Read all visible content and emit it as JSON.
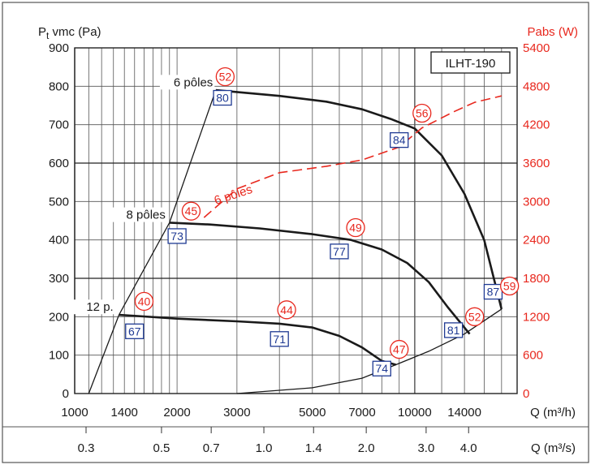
{
  "chart_data": {
    "type": "line",
    "title": "",
    "y_left_label": "Pt vmc (Pa)",
    "y_left_label_main": "P",
    "y_left_label_sub": "t",
    "y_left_label_rest": " vmc (Pa)",
    "y_right_label": "Pabs (W)",
    "x_label": "Q (m³/h)",
    "x2_label": "Q (m³/s)",
    "ylim": [
      0,
      900
    ],
    "y2lim": [
      0,
      5400
    ],
    "y_ticks": [
      "900",
      "800",
      "700",
      "600",
      "500",
      "400",
      "300",
      "200",
      "100",
      "0"
    ],
    "y2_ticks": [
      "5400",
      "4800",
      "4200",
      "3600",
      "3000",
      "2400",
      "1800",
      "1200",
      "600",
      "0"
    ],
    "x_ticks": [
      "1000",
      "1400",
      "2000",
      "3000",
      "5000",
      "7000",
      "10000",
      "14000"
    ],
    "x2_ticks": [
      "0.3",
      "0.5",
      "0.7",
      "1.0",
      "1.4",
      "2.0",
      "3.0",
      "4.0"
    ],
    "model": "ILHT-190",
    "series": [
      {
        "name": "6 pôles",
        "points": [
          [
            2600,
            790
          ],
          [
            3000,
            785
          ],
          [
            4000,
            775
          ],
          [
            5500,
            760
          ],
          [
            7000,
            740
          ],
          [
            8500,
            715
          ],
          [
            10000,
            690
          ],
          [
            12000,
            620
          ],
          [
            14000,
            520
          ],
          [
            16000,
            400
          ],
          [
            18000,
            220
          ]
        ]
      },
      {
        "name": "8 pôles",
        "points": [
          [
            1900,
            445
          ],
          [
            2500,
            440
          ],
          [
            3500,
            430
          ],
          [
            5000,
            415
          ],
          [
            6500,
            400
          ],
          [
            8000,
            375
          ],
          [
            9500,
            340
          ],
          [
            11000,
            290
          ],
          [
            12500,
            225
          ],
          [
            14500,
            155
          ]
        ]
      },
      {
        "name": "12 p.",
        "points": [
          [
            1350,
            205
          ],
          [
            2000,
            195
          ],
          [
            3000,
            188
          ],
          [
            4000,
            182
          ],
          [
            5000,
            172
          ],
          [
            6000,
            150
          ],
          [
            7000,
            120
          ],
          [
            8000,
            85
          ],
          [
            8800,
            75
          ]
        ]
      },
      {
        "name": "6 pôles (Pabs)",
        "axis": "right",
        "points": [
          [
            2400,
            2750
          ],
          [
            3000,
            3200
          ],
          [
            4000,
            3450
          ],
          [
            5500,
            3550
          ],
          [
            7000,
            3650
          ],
          [
            9000,
            3850
          ],
          [
            10500,
            4150
          ],
          [
            13000,
            4400
          ],
          [
            15000,
            4550
          ],
          [
            18000,
            4650
          ]
        ]
      }
    ],
    "system_lines": [
      {
        "points": [
          [
            1100,
            0
          ],
          [
            1350,
            205
          ],
          [
            1900,
            445
          ],
          [
            2600,
            790
          ]
        ]
      },
      {
        "points": [
          [
            3000,
            0
          ],
          [
            5000,
            15
          ],
          [
            7000,
            40
          ],
          [
            8800,
            75
          ],
          [
            11000,
            110
          ],
          [
            14000,
            155
          ],
          [
            18000,
            220
          ]
        ]
      }
    ],
    "blue_labels": [
      {
        "text": "80",
        "x": 2720,
        "y": 770
      },
      {
        "text": "73",
        "x": 2000,
        "y": 410
      },
      {
        "text": "67",
        "x": 1500,
        "y": 162
      },
      {
        "text": "84",
        "x": 9000,
        "y": 660
      },
      {
        "text": "77",
        "x": 6000,
        "y": 370
      },
      {
        "text": "71",
        "x": 4000,
        "y": 142
      },
      {
        "text": "74",
        "x": 8000,
        "y": 65
      },
      {
        "text": "81",
        "x": 13000,
        "y": 165
      },
      {
        "text": "87",
        "x": 17000,
        "y": 265
      }
    ],
    "red_labels": [
      {
        "text": "52",
        "x": 2770,
        "y": 825
      },
      {
        "text": "45",
        "x": 2200,
        "y": 475
      },
      {
        "text": "40",
        "x": 1600,
        "y": 240
      },
      {
        "text": "56",
        "x": 10500,
        "y": 730
      },
      {
        "text": "49",
        "x": 6700,
        "y": 432
      },
      {
        "text": "44",
        "x": 4200,
        "y": 218
      },
      {
        "text": "47",
        "x": 9000,
        "y": 115
      },
      {
        "text": "52",
        "x": 15000,
        "y": 200
      },
      {
        "text": "59",
        "x": 19000,
        "y": 280
      }
    ],
    "curve_text_labels": [
      {
        "text": "6 pôles",
        "x": 2550,
        "y": 800,
        "anchor": "end"
      },
      {
        "text": "8 pôles",
        "x": 1850,
        "y": 455,
        "anchor": "end"
      },
      {
        "text": "12 p.",
        "x": 1300,
        "y": 215,
        "anchor": "end"
      }
    ],
    "red_curve_label": {
      "text": "6 pôles",
      "x": 2600,
      "y": 2950,
      "rotate": -18
    },
    "grid": true
  }
}
